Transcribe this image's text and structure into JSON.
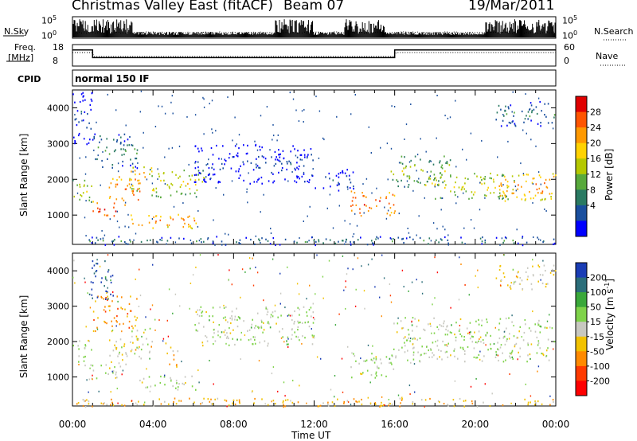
{
  "header": {
    "station": "Christmas Valley East (fitACF)",
    "beam": "Beam 07",
    "date": "19/Mar/2011"
  },
  "top_panels": {
    "nsky_label": "N.Sky",
    "nsky_ticks": [
      "10^5",
      "10^0"
    ],
    "nsearch_label": "N.Search",
    "nsearch_ticks": [
      "10^5",
      "10^0"
    ],
    "freq_label_1": "Freq.",
    "freq_label_2": "[MHz]",
    "freq_ticks": [
      "18",
      "8"
    ],
    "nave_label": "Nave",
    "nave_ticks": [
      "60",
      "0"
    ],
    "cpid_label": "CPID",
    "cpid_value": "normal 150 IF"
  },
  "chart_data": [
    {
      "type": "heatmap",
      "name": "power",
      "ylabel": "Slant Range [km]",
      "xlabel": "Time UT",
      "xlim_hours": [
        0,
        24
      ],
      "ylim_km": [
        180,
        4500
      ],
      "y_ticks": [
        "1000",
        "2000",
        "3000",
        "4000"
      ],
      "colorbar_label": "Power [dB]",
      "colorbar_ticks": [
        "28",
        "24",
        "20",
        "16",
        "12",
        "8",
        "4"
      ],
      "colorbar_colors": [
        "#e00000",
        "#ff5500",
        "#ff9900",
        "#ffd200",
        "#b5c800",
        "#58a93c",
        "#2a7a62",
        "#1a4f9e",
        "#0000ff"
      ],
      "regions": [
        {
          "t0": 0.0,
          "t1": 1.0,
          "r0": 1350,
          "r1": 2050,
          "level": 0.55
        },
        {
          "t0": 0.9,
          "t1": 2.2,
          "r0": 950,
          "r1": 1400,
          "level": 0.92
        },
        {
          "t0": 1.8,
          "t1": 3.4,
          "r0": 1300,
          "r1": 2100,
          "level": 0.85
        },
        {
          "t0": 2.8,
          "t1": 4.0,
          "r0": 1700,
          "r1": 2400,
          "level": 0.75
        },
        {
          "t0": 2.5,
          "t1": 6.2,
          "r0": 650,
          "r1": 1050,
          "level": 0.8
        },
        {
          "t0": 3.8,
          "t1": 6.6,
          "r0": 1500,
          "r1": 2300,
          "level": 0.6
        },
        {
          "t0": 1.0,
          "t1": 3.2,
          "r0": 2300,
          "r1": 3300,
          "level": 0.35
        },
        {
          "t0": 6.0,
          "t1": 12.0,
          "r0": 1900,
          "r1": 3000,
          "level": 0.15
        },
        {
          "t0": 12.0,
          "t1": 14.0,
          "r0": 1700,
          "r1": 2300,
          "level": 0.2
        },
        {
          "t0": 13.8,
          "t1": 16.0,
          "r0": 1000,
          "r1": 1700,
          "level": 0.88
        },
        {
          "t0": 15.8,
          "t1": 18.8,
          "r0": 1800,
          "r1": 2700,
          "level": 0.5
        },
        {
          "t0": 17.5,
          "t1": 22.0,
          "r0": 1450,
          "r1": 2200,
          "level": 0.6
        },
        {
          "t0": 21.0,
          "t1": 24.0,
          "r0": 1400,
          "r1": 2200,
          "level": 0.8
        },
        {
          "t0": 21.0,
          "t1": 24.0,
          "r0": 3500,
          "r1": 4200,
          "level": 0.3
        },
        {
          "t0": 0.0,
          "t1": 24.0,
          "r0": 180,
          "r1": 420,
          "level": 0.3
        },
        {
          "t0": 0.0,
          "t1": 1.0,
          "r0": 3000,
          "r1": 4500,
          "level": 0.2
        }
      ]
    },
    {
      "type": "heatmap",
      "name": "velocity",
      "ylabel": "Slant Range [km]",
      "xlabel": "Time UT",
      "xlim_hours": [
        0,
        24
      ],
      "ylim_km": [
        180,
        4500
      ],
      "y_ticks": [
        "1000",
        "2000",
        "3000",
        "4000"
      ],
      "colorbar_label": "Velocity [m s^-1]",
      "colorbar_ticks": [
        "200",
        "100",
        "50",
        "15",
        "-15",
        "-50",
        "-100",
        "-200"
      ],
      "colorbar_colors": [
        "#1a3db5",
        "#2b6e7a",
        "#3aa83a",
        "#7fd34a",
        "#c8c8c0",
        "#f2c200",
        "#ff8a00",
        "#ff3a00",
        "#ff0000"
      ],
      "regions": [
        {
          "t0": 0.0,
          "t1": 1.0,
          "r0": 1350,
          "r1": 2050,
          "level": 0.45
        },
        {
          "t0": 0.9,
          "t1": 2.2,
          "r0": 950,
          "r1": 1400,
          "level": 0.45
        },
        {
          "t0": 1.8,
          "t1": 3.4,
          "r0": 1300,
          "r1": 2100,
          "level": 0.5
        },
        {
          "t0": 2.8,
          "t1": 4.0,
          "r0": 1700,
          "r1": 2400,
          "level": 0.55
        },
        {
          "t0": 3.2,
          "t1": 6.2,
          "r0": 650,
          "r1": 1050,
          "level": 0.45
        },
        {
          "t0": 4.6,
          "t1": 5.2,
          "r0": 1300,
          "r1": 2000,
          "level": 0.65
        },
        {
          "t0": 1.0,
          "t1": 3.2,
          "r0": 2300,
          "r1": 3300,
          "level": 0.7
        },
        {
          "t0": 6.0,
          "t1": 12.0,
          "r0": 1900,
          "r1": 3000,
          "level": 0.45
        },
        {
          "t0": 13.8,
          "t1": 16.0,
          "r0": 1000,
          "r1": 1700,
          "level": 0.45
        },
        {
          "t0": 15.8,
          "t1": 24.0,
          "r0": 1450,
          "r1": 2700,
          "level": 0.45
        },
        {
          "t0": 21.0,
          "t1": 24.0,
          "r0": 3500,
          "r1": 4200,
          "level": 0.55
        },
        {
          "t0": 0.0,
          "t1": 24.0,
          "r0": 180,
          "r1": 420,
          "level": 0.62
        },
        {
          "t0": 0.8,
          "t1": 2.0,
          "r0": 3200,
          "r1": 4300,
          "level": 0.1
        }
      ]
    }
  ],
  "x_ticks": [
    "00:00",
    "04:00",
    "08:00",
    "12:00",
    "16:00",
    "20:00",
    "00:00"
  ],
  "x_title": "Time UT"
}
